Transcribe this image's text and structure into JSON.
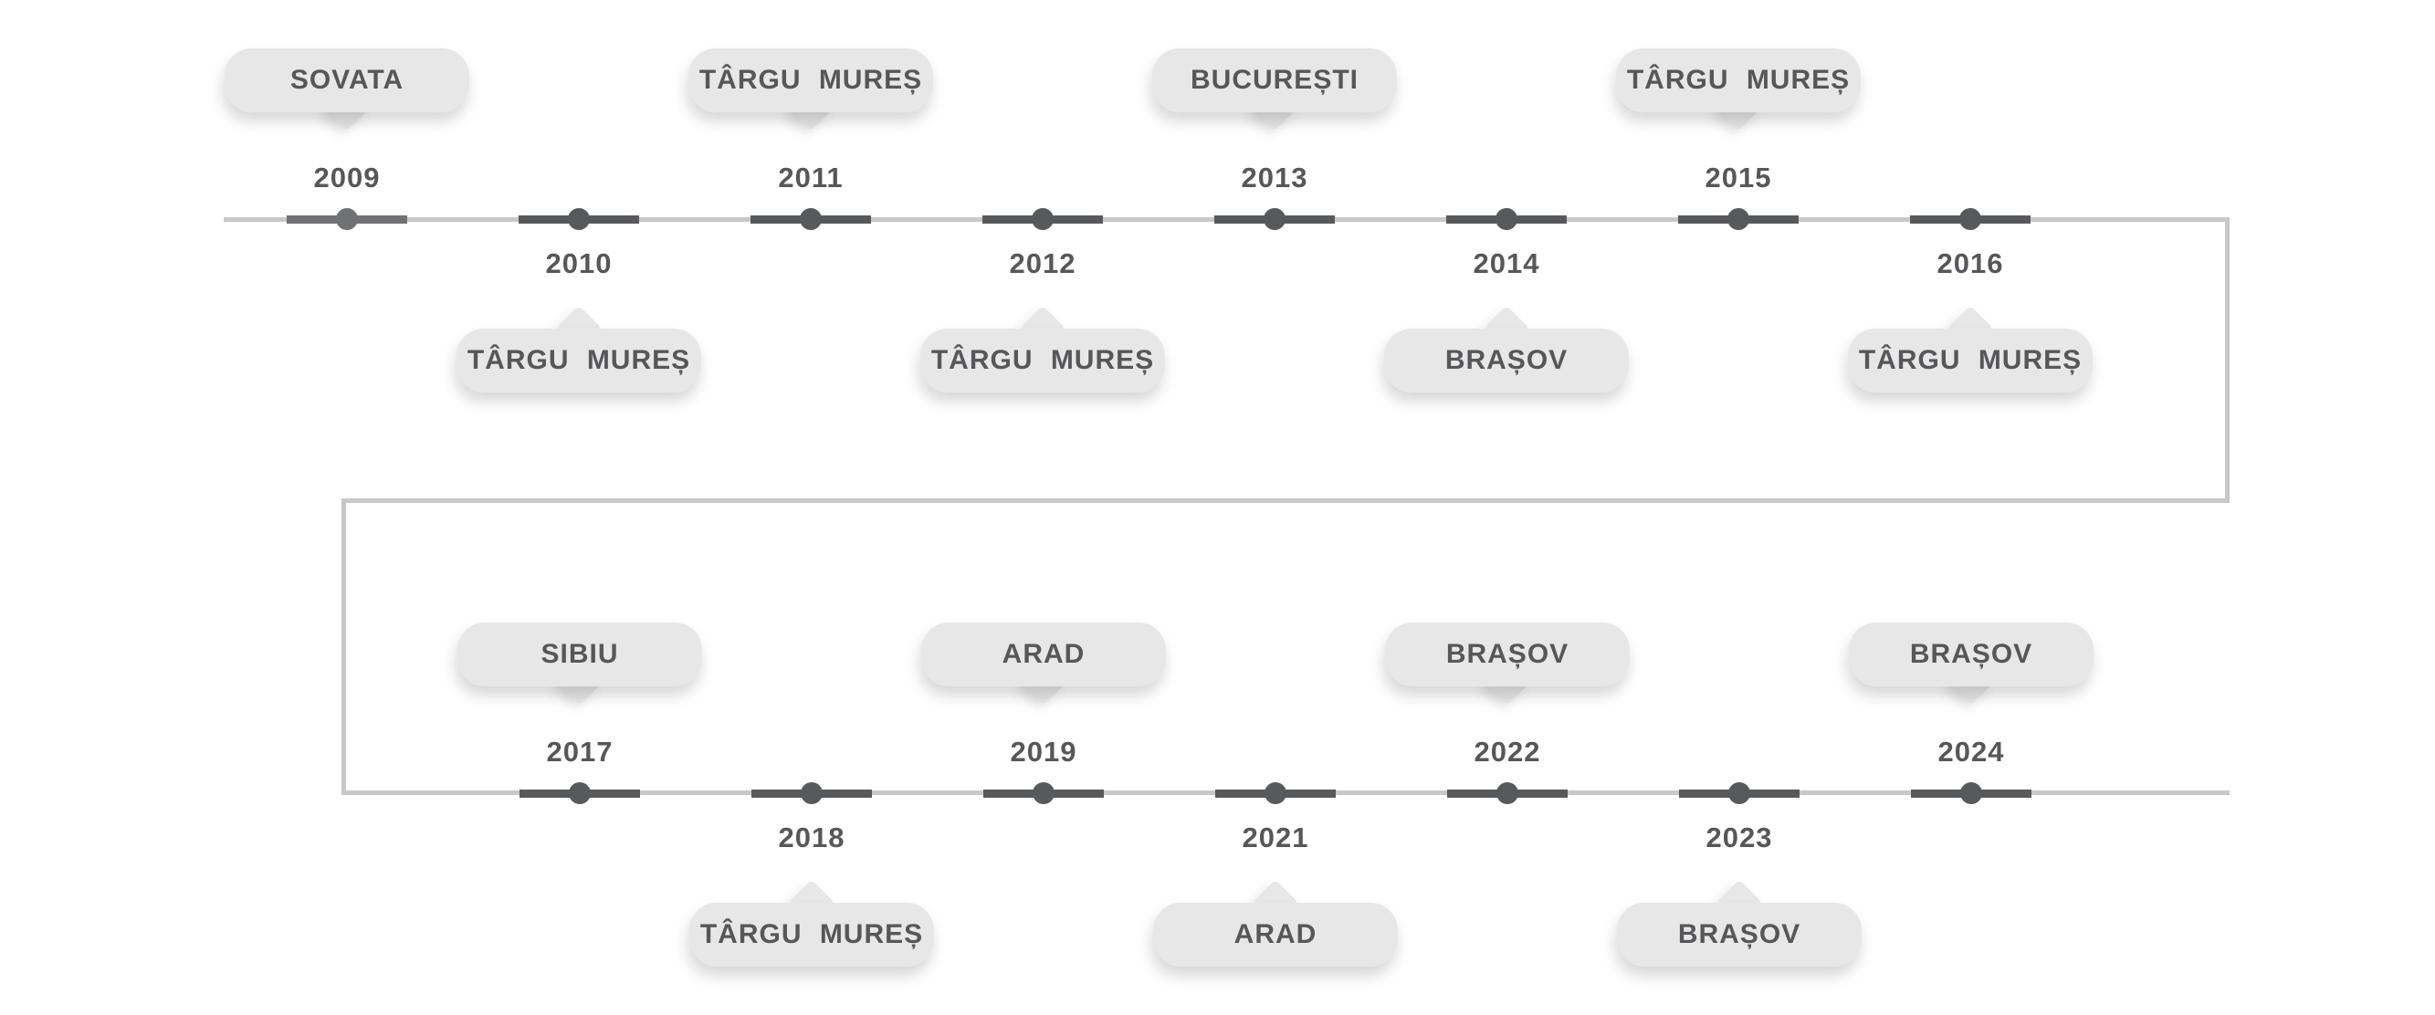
{
  "page": {
    "background": "#ffffff",
    "description": "Two-row zigzag timeline of years and Romanian cities"
  },
  "timeline": {
    "colors": {
      "marker": "#58595b",
      "marker_muted": "#707173",
      "track": "#c8c8ca",
      "bubble_fill": "#e7e7e7",
      "text": "#57575a"
    },
    "rows": [
      {
        "name": "row-2009-2016",
        "items": [
          {
            "year": "2009",
            "city": "SOVATA",
            "side": "above",
            "muted": true
          },
          {
            "year": "2010",
            "city": "TÂRGU MUREȘ",
            "side": "below"
          },
          {
            "year": "2011",
            "city": "TÂRGU MUREȘ",
            "side": "above"
          },
          {
            "year": "2012",
            "city": "TÂRGU MUREȘ",
            "side": "below"
          },
          {
            "year": "2013",
            "city": "BUCUREȘTI",
            "side": "above"
          },
          {
            "year": "2014",
            "city": "BRAȘOV",
            "side": "below"
          },
          {
            "year": "2015",
            "city": "TÂRGU MUREȘ",
            "side": "above"
          },
          {
            "year": "2016",
            "city": "TÂRGU MUREȘ",
            "side": "below"
          }
        ]
      },
      {
        "name": "row-2017-2024",
        "items": [
          {
            "year": "2017",
            "city": "SIBIU",
            "side": "above"
          },
          {
            "year": "2018",
            "city": "TÂRGU MUREȘ",
            "side": "below"
          },
          {
            "year": "2019",
            "city": "ARAD",
            "side": "above"
          },
          {
            "year": "2021",
            "city": "ARAD",
            "side": "below"
          },
          {
            "year": "2022",
            "city": "BRAȘOV",
            "side": "above"
          },
          {
            "year": "2023",
            "city": "BRAȘOV",
            "side": "below"
          },
          {
            "year": "2024",
            "city": "BRAȘOV",
            "side": "above"
          }
        ]
      }
    ]
  }
}
